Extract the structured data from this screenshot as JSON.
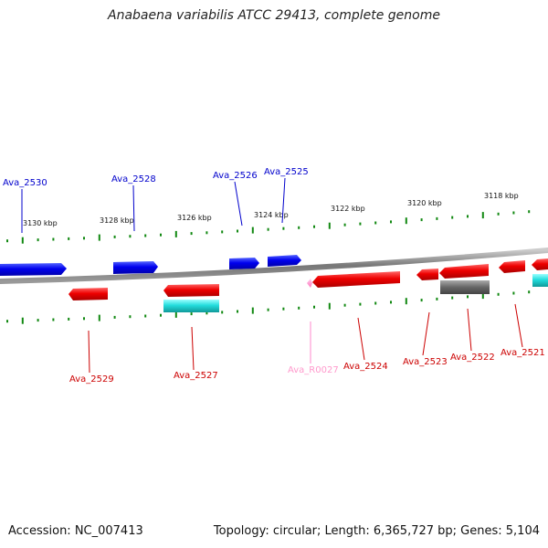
{
  "header": {
    "title": "Anabaena variabilis ATCC 29413, complete genome"
  },
  "footer": {
    "accession": "Accession: NC_007413",
    "topology": "Topology: circular; Length: 6,365,727 bp; Genes: 5,104"
  },
  "colors": {
    "forward": "#0000ee",
    "reverse": "#ee0000",
    "rna": "#ff88cc",
    "cyan": "#22dddd",
    "gray": "#666666",
    "tick": "#118811",
    "backbone": "#888888"
  },
  "axis": {
    "unit": "kbp",
    "scale_labels": [
      "3130 kbp",
      "3128 kbp",
      "3126 kbp",
      "3124 kbp",
      "3122 kbp",
      "3120 kbp",
      "3118 kbp"
    ]
  },
  "genes": {
    "top": [
      {
        "name": "Ava_2530",
        "strand": "forward"
      },
      {
        "name": "Ava_2528",
        "strand": "forward"
      },
      {
        "name": "Ava_2526",
        "strand": "forward"
      },
      {
        "name": "Ava_2525",
        "strand": "forward"
      }
    ],
    "bottom": [
      {
        "name": "Ava_2529",
        "strand": "reverse"
      },
      {
        "name": "Ava_2527",
        "strand": "reverse"
      },
      {
        "name": "Ava_R0027",
        "strand": "rna"
      },
      {
        "name": "Ava_2524",
        "strand": "reverse"
      },
      {
        "name": "Ava_2523",
        "strand": "reverse"
      },
      {
        "name": "Ava_2522",
        "strand": "reverse"
      },
      {
        "name": "Ava_2521",
        "strand": "reverse"
      }
    ]
  }
}
